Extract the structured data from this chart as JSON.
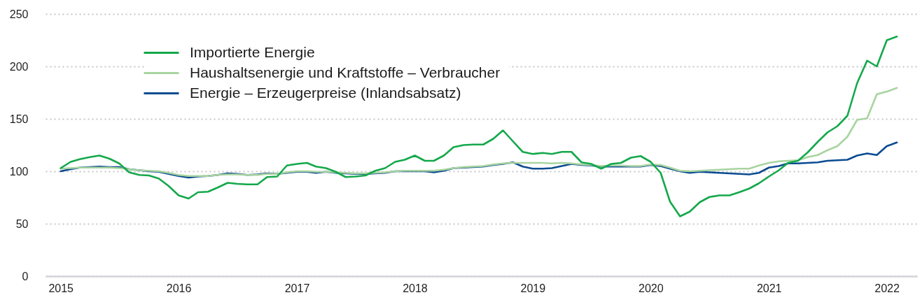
{
  "chart_data": {
    "type": "line",
    "x": [
      "2015-01",
      "2015-02",
      "2015-03",
      "2015-04",
      "2015-05",
      "2015-06",
      "2015-07",
      "2015-08",
      "2015-09",
      "2015-10",
      "2015-11",
      "2015-12",
      "2016-01",
      "2016-02",
      "2016-03",
      "2016-04",
      "2016-05",
      "2016-06",
      "2016-07",
      "2016-08",
      "2016-09",
      "2016-10",
      "2016-11",
      "2016-12",
      "2017-01",
      "2017-02",
      "2017-03",
      "2017-04",
      "2017-05",
      "2017-06",
      "2017-07",
      "2017-08",
      "2017-09",
      "2017-10",
      "2017-11",
      "2017-12",
      "2018-01",
      "2018-02",
      "2018-03",
      "2018-04",
      "2018-05",
      "2018-06",
      "2018-07",
      "2018-08",
      "2018-09",
      "2018-10",
      "2018-11",
      "2018-12",
      "2019-01",
      "2019-02",
      "2019-03",
      "2019-04",
      "2019-05",
      "2019-06",
      "2019-07",
      "2019-08",
      "2019-09",
      "2019-10",
      "2019-11",
      "2019-12",
      "2020-01",
      "2020-02",
      "2020-03",
      "2020-04",
      "2020-05",
      "2020-06",
      "2020-07",
      "2020-08",
      "2020-09",
      "2020-10",
      "2020-11",
      "2020-12",
      "2021-01",
      "2021-02",
      "2021-03",
      "2021-04",
      "2021-05",
      "2021-06",
      "2021-07",
      "2021-08",
      "2021-09",
      "2021-10",
      "2021-11",
      "2021-12",
      "2022-01",
      "2022-02"
    ],
    "series": [
      {
        "name": "Importierte Energie",
        "color": "#14a84b",
        "values": [
          103,
          109,
          111.5,
          113.5,
          115,
          112,
          107.5,
          99,
          96.5,
          96,
          93,
          86,
          77,
          74,
          80,
          80.5,
          84.5,
          89,
          88,
          87.5,
          87.5,
          94.5,
          95,
          105.5,
          107,
          108,
          104.5,
          103,
          99.5,
          94.5,
          95,
          96,
          100.5,
          103,
          109,
          111,
          115,
          110,
          110,
          115,
          123,
          125,
          125.5,
          125.5,
          131,
          139,
          128.5,
          118.5,
          116.5,
          117.5,
          116.5,
          118.5,
          118.5,
          108.5,
          107,
          102.5,
          107,
          108,
          113,
          114.5,
          109,
          98.5,
          71,
          57,
          61.5,
          70.5,
          75.5,
          77,
          77,
          80,
          83.5,
          88.5,
          95,
          101,
          108,
          110,
          118,
          128,
          137,
          143,
          153,
          184,
          205.5,
          200,
          225,
          228.5
        ]
      },
      {
        "name": "Haushaltsenergie und Kraftstoffe – Verbraucher",
        "color": "#a8d4a0",
        "values": [
          102.5,
          103,
          103.5,
          103.5,
          103.5,
          103.5,
          103,
          102,
          101,
          100.5,
          100,
          98.5,
          96.5,
          95.5,
          95.5,
          95.5,
          96.5,
          97,
          97,
          96.5,
          96.5,
          97.5,
          97.5,
          99,
          100,
          100,
          99.5,
          99.5,
          99,
          98.5,
          98,
          98,
          98.5,
          99,
          100,
          100.5,
          100.5,
          100.5,
          100.5,
          101.5,
          103,
          104,
          104.5,
          105,
          106.5,
          107.5,
          108,
          108,
          108,
          108,
          107.5,
          108,
          107.5,
          106.5,
          106,
          105,
          105.5,
          105.5,
          105,
          105,
          106.5,
          106,
          103.5,
          100.5,
          100,
          100.5,
          101,
          101.5,
          102,
          102.5,
          102.5,
          105.5,
          108,
          109.5,
          110,
          110.5,
          113.5,
          115.5,
          120,
          124,
          133,
          149,
          150.5,
          173.5,
          176,
          179.5
        ]
      },
      {
        "name": "Energie – Erzeugerpreise (Inlandsabsatz)",
        "color": "#0a4b91",
        "values": [
          100,
          102,
          103.5,
          104,
          104.5,
          104,
          104,
          102,
          101,
          100,
          99.5,
          97.5,
          95.5,
          94,
          95,
          95.5,
          96.5,
          98,
          97.5,
          96.5,
          97,
          98,
          97.5,
          98.5,
          99.5,
          99.5,
          98.5,
          99.5,
          98.5,
          98,
          97.5,
          97.5,
          98,
          98.5,
          100,
          100,
          100,
          100,
          99,
          100.5,
          103,
          103.5,
          104,
          104.5,
          106,
          107,
          108.5,
          104.5,
          102.5,
          102.5,
          103,
          105,
          107,
          106,
          105.5,
          104.5,
          104.5,
          104.5,
          104.5,
          104.5,
          106,
          105,
          102.5,
          100,
          98.5,
          99.5,
          99,
          98.5,
          98,
          97.5,
          97,
          98.5,
          103.5,
          105,
          107.5,
          107.5,
          108,
          108.5,
          110,
          110.5,
          111,
          115,
          117,
          115.5,
          124,
          127.5
        ]
      }
    ],
    "xlim": [
      "2014-11-15",
      "2022-04-05"
    ],
    "xticks": [
      "2015",
      "2016",
      "2017",
      "2018",
      "2019",
      "2020",
      "2021",
      "2022"
    ],
    "ylim": [
      0,
      250
    ],
    "yticks": [
      0,
      50,
      100,
      150,
      200,
      250
    ],
    "grid": "y",
    "legend": "top left",
    "line_style": "solid"
  }
}
